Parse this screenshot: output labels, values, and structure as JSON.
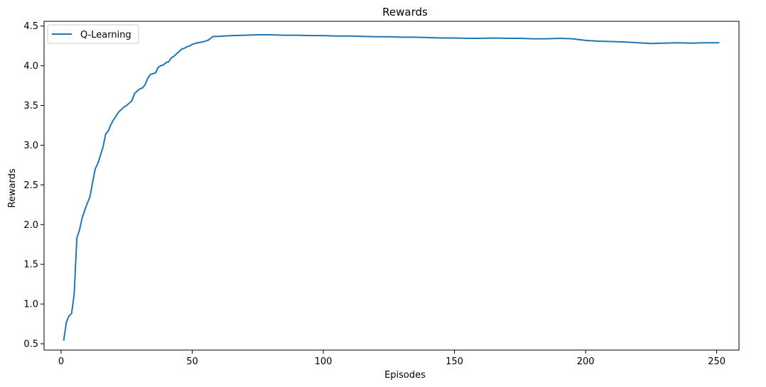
{
  "chart_data": {
    "type": "line",
    "title": "Rewards",
    "xlabel": "Episodes",
    "ylabel": "Rewards",
    "xlim": [
      -6.5,
      258.5
    ],
    "ylim": [
      0.42,
      4.56
    ],
    "xticks": [
      0,
      50,
      100,
      150,
      200,
      250
    ],
    "yticks": [
      0.5,
      1.0,
      1.5,
      2.0,
      2.5,
      3.0,
      3.5,
      4.0,
      4.5
    ],
    "xtick_labels": [
      "0",
      "50",
      "100",
      "150",
      "200",
      "250"
    ],
    "ytick_labels": [
      "0.5",
      "1.0",
      "1.5",
      "2.0",
      "2.5",
      "3.0",
      "3.5",
      "4.0",
      "4.5"
    ],
    "grid": false,
    "legend_position": "top-left",
    "series": [
      {
        "name": "Q-Learning",
        "color": "#1f77b4",
        "x": [
          1,
          2,
          3,
          4,
          5,
          6,
          7,
          8,
          9,
          10,
          11,
          12,
          13,
          14,
          15,
          16,
          17,
          18,
          19,
          20,
          21,
          22,
          23,
          24,
          25,
          26,
          27,
          28,
          29,
          30,
          31,
          32,
          33,
          34,
          35,
          36,
          37,
          38,
          39,
          40,
          41,
          42,
          43,
          44,
          45,
          46,
          47,
          48,
          49,
          50,
          52,
          54,
          56,
          58,
          60,
          65,
          70,
          75,
          80,
          85,
          90,
          95,
          100,
          105,
          110,
          115,
          120,
          125,
          130,
          135,
          140,
          145,
          150,
          155,
          160,
          165,
          170,
          175,
          180,
          185,
          190,
          195,
          200,
          205,
          210,
          215,
          220,
          225,
          230,
          235,
          240,
          245,
          251
        ],
        "y": [
          0.54,
          0.77,
          0.85,
          0.88,
          1.13,
          1.83,
          1.93,
          2.08,
          2.18,
          2.27,
          2.35,
          2.53,
          2.7,
          2.77,
          2.87,
          2.98,
          3.14,
          3.18,
          3.26,
          3.32,
          3.37,
          3.42,
          3.45,
          3.48,
          3.5,
          3.53,
          3.56,
          3.65,
          3.68,
          3.71,
          3.72,
          3.76,
          3.84,
          3.89,
          3.9,
          3.91,
          3.98,
          4.0,
          4.01,
          4.04,
          4.05,
          4.1,
          4.12,
          4.15,
          4.18,
          4.21,
          4.22,
          4.24,
          4.25,
          4.27,
          4.29,
          4.3,
          4.32,
          4.37,
          4.37,
          4.38,
          4.385,
          4.39,
          4.39,
          4.385,
          4.385,
          4.38,
          4.38,
          4.375,
          4.375,
          4.37,
          4.365,
          4.365,
          4.36,
          4.36,
          4.355,
          4.35,
          4.35,
          4.345,
          4.345,
          4.35,
          4.345,
          4.345,
          4.34,
          4.34,
          4.345,
          4.34,
          4.32,
          4.31,
          4.305,
          4.3,
          4.29,
          4.28,
          4.285,
          4.29,
          4.285,
          4.29,
          4.29
        ]
      }
    ]
  }
}
